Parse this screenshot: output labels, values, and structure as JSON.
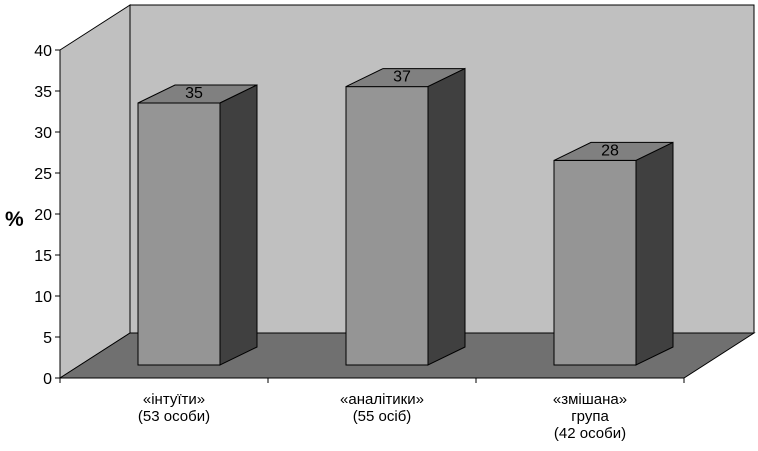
{
  "chart_data": {
    "type": "bar",
    "title": "",
    "xlabel": "",
    "ylabel": "%",
    "ylim": [
      0,
      40
    ],
    "yticks": [
      0,
      5,
      10,
      15,
      20,
      25,
      30,
      35,
      40
    ],
    "grid": false,
    "legend": "none",
    "categories": [
      [
        "«інтуїти»",
        "(53 особи)"
      ],
      [
        "«аналітики»",
        "(55 осіб)"
      ],
      [
        "«змішана»",
        "група",
        "(42 особи)"
      ]
    ],
    "values": [
      35,
      37,
      28
    ],
    "colors": {
      "bar_front": "#959595",
      "bar_top": "#808080",
      "bar_side": "#404040",
      "back_wall": "#c0c0c0",
      "side_wall": "#c0c0c0",
      "floor": "#707070"
    }
  }
}
